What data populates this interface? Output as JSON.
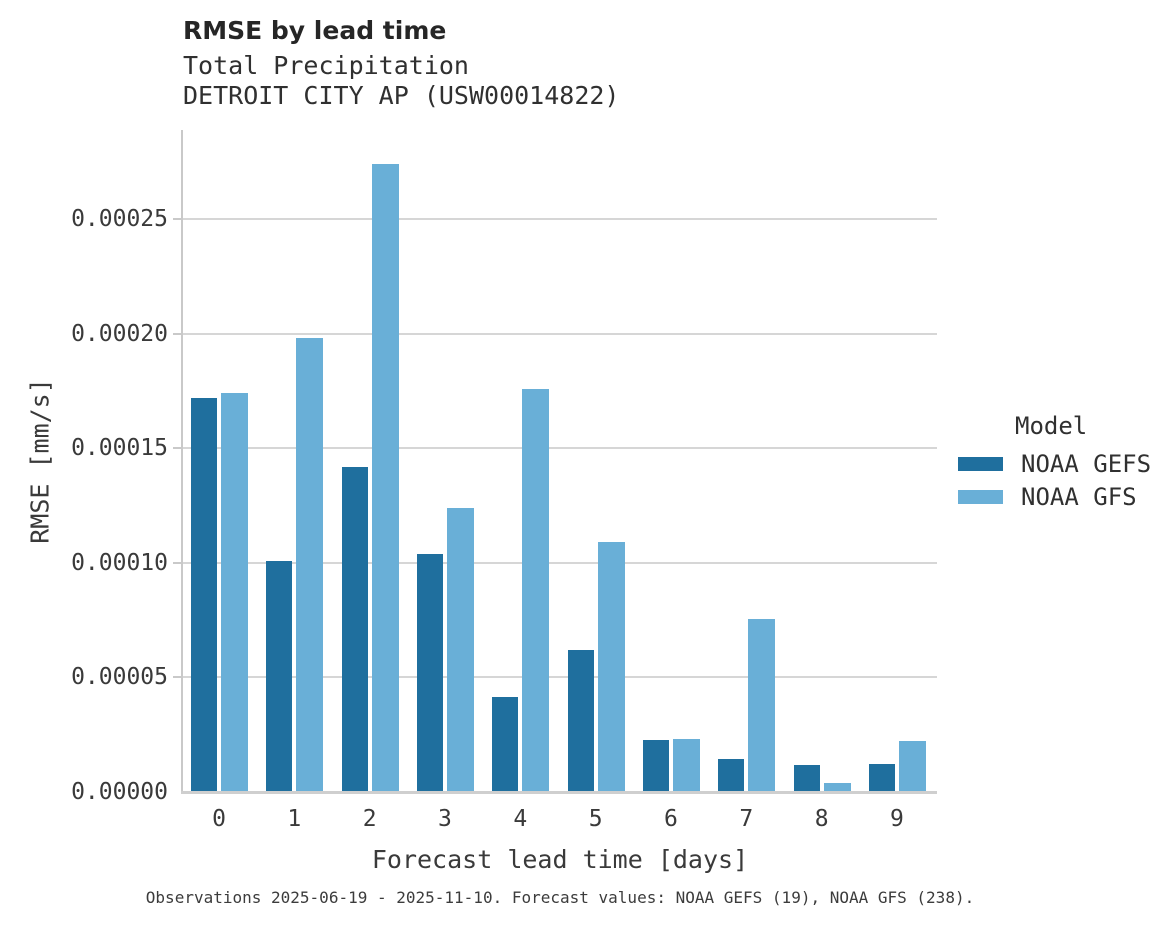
{
  "header": {
    "title": "RMSE by lead time",
    "subtitle1": "Total Precipitation",
    "subtitle2": "DETROIT CITY AP (USW00014822)"
  },
  "caption": "Observations 2025-06-19 - 2025-11-10. Forecast values: NOAA GEFS (19), NOAA GFS (238).",
  "chart_data": {
    "type": "bar",
    "title": "RMSE by lead time",
    "subtitle": [
      "Total Precipitation",
      "DETROIT CITY AP (USW00014822)"
    ],
    "categories": [
      0,
      1,
      2,
      3,
      4,
      5,
      6,
      7,
      8,
      9
    ],
    "series": [
      {
        "name": "NOAA GEFS",
        "color": "#1f6f9e",
        "values": [
          0.000172,
          0.000101,
          0.000142,
          0.000104,
          4.15e-05,
          6.2e-05,
          2.27e-05,
          1.45e-05,
          1.18e-05,
          1.22e-05
        ]
      },
      {
        "name": "NOAA GFS",
        "color": "#69afd7",
        "values": [
          0.000174,
          0.000198,
          0.000274,
          0.000124,
          0.000176,
          0.000109,
          2.31e-05,
          7.55e-05,
          3.9e-06,
          2.23e-05
        ]
      }
    ],
    "xlabel": "Forecast lead time [days]",
    "ylabel": "RMSE [mm/s]",
    "ylim": [
      0,
      0.00028887
    ],
    "yticks": [
      0,
      5e-05,
      0.0001,
      0.00015,
      0.0002,
      0.00025
    ],
    "ytick_labels": [
      "0.00000",
      "0.00005",
      "0.00010",
      "0.00015",
      "0.00020",
      "0.00025"
    ],
    "legend_title": "Model",
    "legend_position": "right",
    "grid": true,
    "grid_color": "#d6d6d6",
    "background_color": "#ffffff"
  }
}
